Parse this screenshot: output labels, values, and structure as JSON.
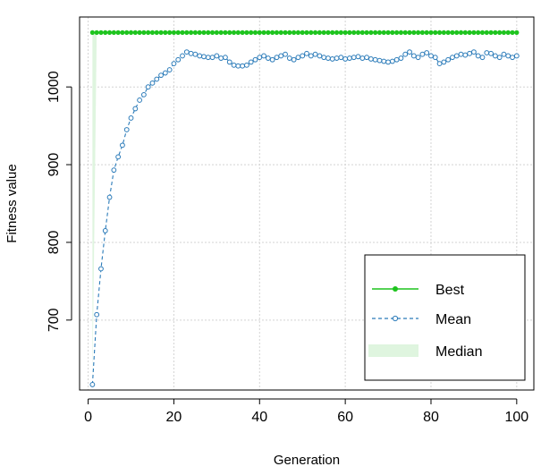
{
  "chart_data": {
    "type": "line",
    "title": "",
    "xlabel": "Generation",
    "ylabel": "Fitness value",
    "xlim": [
      -2,
      104
    ],
    "ylim": [
      610,
      1090
    ],
    "x_ticks": [
      0,
      20,
      40,
      60,
      80,
      100
    ],
    "y_ticks": [
      700,
      800,
      900,
      1000
    ],
    "grid": true,
    "legend_position": "bottom-right",
    "generations": [
      1,
      2,
      3,
      4,
      5,
      6,
      7,
      8,
      9,
      10,
      11,
      12,
      13,
      14,
      15,
      16,
      17,
      18,
      19,
      20,
      21,
      22,
      23,
      24,
      25,
      26,
      27,
      28,
      29,
      30,
      31,
      32,
      33,
      34,
      35,
      36,
      37,
      38,
      39,
      40,
      41,
      42,
      43,
      44,
      45,
      46,
      47,
      48,
      49,
      50,
      51,
      52,
      53,
      54,
      55,
      56,
      57,
      58,
      59,
      60,
      61,
      62,
      63,
      64,
      65,
      66,
      67,
      68,
      69,
      70,
      71,
      72,
      73,
      74,
      75,
      76,
      77,
      78,
      79,
      80,
      81,
      82,
      83,
      84,
      85,
      86,
      87,
      88,
      89,
      90,
      91,
      92,
      93,
      94,
      95,
      96,
      97,
      98,
      99,
      100
    ],
    "series": [
      {
        "name": "Best",
        "color": "#1ec41e",
        "style": "solid-filled-points",
        "values": [
          1070,
          1070,
          1070,
          1070,
          1070,
          1070,
          1070,
          1070,
          1070,
          1070,
          1070,
          1070,
          1070,
          1070,
          1070,
          1070,
          1070,
          1070,
          1070,
          1070,
          1070,
          1070,
          1070,
          1070,
          1070,
          1070,
          1070,
          1070,
          1070,
          1070,
          1070,
          1070,
          1070,
          1070,
          1070,
          1070,
          1070,
          1070,
          1070,
          1070,
          1070,
          1070,
          1070,
          1070,
          1070,
          1070,
          1070,
          1070,
          1070,
          1070,
          1070,
          1070,
          1070,
          1070,
          1070,
          1070,
          1070,
          1070,
          1070,
          1070,
          1070,
          1070,
          1070,
          1070,
          1070,
          1070,
          1070,
          1070,
          1070,
          1070,
          1070,
          1070,
          1070,
          1070,
          1070,
          1070,
          1070,
          1070,
          1070,
          1070,
          1070,
          1070,
          1070,
          1070,
          1070,
          1070,
          1070,
          1070,
          1070,
          1070,
          1070,
          1070,
          1070,
          1070,
          1070,
          1070,
          1070,
          1070,
          1070,
          1070
        ]
      },
      {
        "name": "Mean",
        "color": "#2b7bb9",
        "style": "dashed-open-points",
        "values": [
          617,
          707,
          766,
          815,
          858,
          893,
          910,
          925,
          945,
          960,
          972,
          983,
          990,
          1000,
          1005,
          1010,
          1015,
          1018,
          1022,
          1030,
          1035,
          1040,
          1045,
          1043,
          1042,
          1040,
          1039,
          1038,
          1038,
          1040,
          1037,
          1038,
          1032,
          1028,
          1027,
          1027,
          1028,
          1032,
          1035,
          1038,
          1040,
          1037,
          1035,
          1038,
          1040,
          1042,
          1037,
          1035,
          1038,
          1040,
          1043,
          1040,
          1042,
          1040,
          1038,
          1037,
          1036,
          1037,
          1038,
          1036,
          1037,
          1038,
          1039,
          1037,
          1038,
          1036,
          1035,
          1034,
          1033,
          1032,
          1033,
          1035,
          1037,
          1042,
          1045,
          1040,
          1038,
          1042,
          1044,
          1040,
          1038,
          1030,
          1032,
          1035,
          1038,
          1040,
          1042,
          1041,
          1043,
          1045,
          1040,
          1038,
          1044,
          1043,
          1040,
          1038,
          1042,
          1040,
          1038,
          1040
        ]
      },
      {
        "name": "Median",
        "color": "#dff5df",
        "style": "filled-area-between-median-and-best",
        "values": [
          617,
          1070,
          1070,
          1070,
          1070,
          1070,
          1070,
          1070,
          1070,
          1070,
          1070,
          1070,
          1070,
          1070,
          1070,
          1070,
          1070,
          1070,
          1070,
          1070,
          1070,
          1070,
          1070,
          1070,
          1070,
          1070,
          1070,
          1070,
          1070,
          1070,
          1070,
          1070,
          1070,
          1070,
          1070,
          1070,
          1070,
          1070,
          1070,
          1070,
          1070,
          1070,
          1070,
          1070,
          1070,
          1070,
          1070,
          1070,
          1070,
          1070,
          1070,
          1070,
          1070,
          1070,
          1070,
          1070,
          1070,
          1070,
          1070,
          1070,
          1070,
          1070,
          1070,
          1070,
          1070,
          1070,
          1070,
          1070,
          1070,
          1070,
          1070,
          1070,
          1070,
          1070,
          1070,
          1070,
          1070,
          1070,
          1070,
          1070,
          1070,
          1070,
          1070,
          1070,
          1070,
          1070,
          1070,
          1070,
          1070,
          1070,
          1070,
          1070,
          1070,
          1070,
          1070,
          1070,
          1070,
          1070,
          1070,
          1070
        ]
      }
    ]
  }
}
